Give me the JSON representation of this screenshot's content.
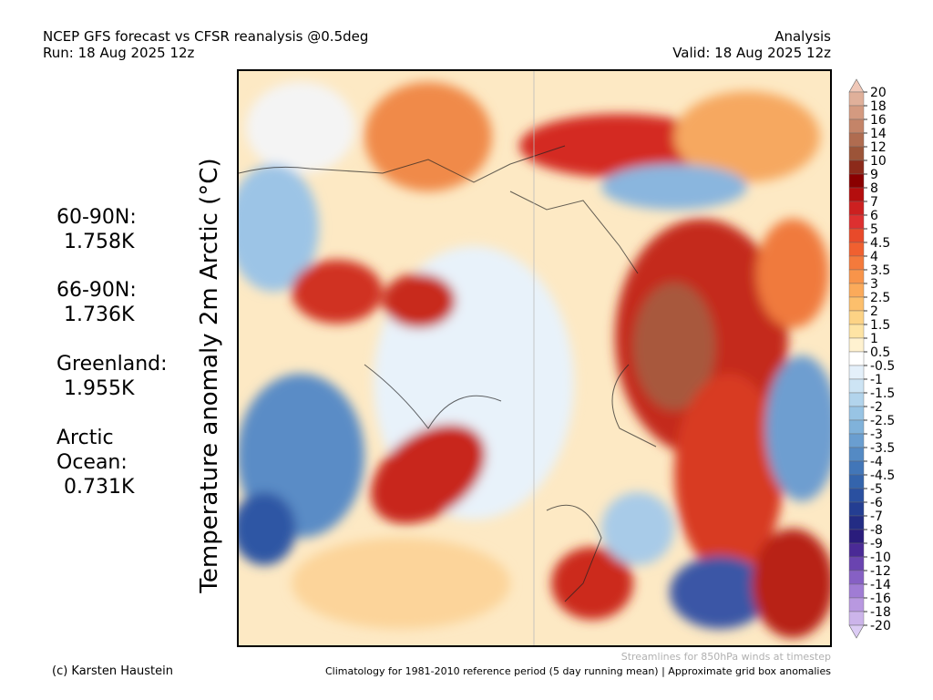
{
  "header": {
    "title": "NCEP GFS forecast vs CFSR reanalysis @0.5deg",
    "run": "Run: 18 Aug 2025 12z",
    "mode": "Analysis",
    "valid": "Valid: 18 Aug 2025 12z"
  },
  "y_label": "Temperature anomaly 2m Arctic (°C)",
  "regions": [
    {
      "name": "60-90N:",
      "value": "1.758K"
    },
    {
      "name": "66-90N:",
      "value": "1.736K"
    },
    {
      "name": "Greenland:",
      "value": "1.955K"
    },
    {
      "name": "Arctic Ocean:",
      "value": "0.731K"
    }
  ],
  "colorbar": {
    "levels": [
      20,
      18,
      16,
      14,
      12,
      10,
      9,
      8,
      7,
      6,
      5,
      4.5,
      4,
      3.5,
      3,
      2.5,
      2,
      1.5,
      1,
      0.5,
      -0.5,
      -1,
      -1.5,
      -2,
      -2.5,
      -3,
      -3.5,
      -4,
      -4.5,
      -5,
      -6,
      -7,
      -8,
      -9,
      -10,
      -12,
      -14,
      -16,
      -18,
      -20
    ],
    "colors": [
      "#f0c8b8",
      "#e0b09a",
      "#d49a80",
      "#c48468",
      "#b06c50",
      "#9c5438",
      "#8c2a1a",
      "#8a0000",
      "#b40e0e",
      "#cc2020",
      "#dd3030",
      "#e84a2a",
      "#f06030",
      "#f47a3c",
      "#f8944a",
      "#fbaa5a",
      "#fcbf6c",
      "#fdd385",
      "#fee4a4",
      "#fff2d0",
      "#ffffff",
      "#e4f0fa",
      "#cde4f4",
      "#b2d4ec",
      "#98c4e4",
      "#80b2da",
      "#6a9ed0",
      "#548ac4",
      "#4276b8",
      "#3464ac",
      "#2a50a0",
      "#243e92",
      "#232c84",
      "#2a1c7c",
      "#4a2a96",
      "#6a44b0",
      "#8660c4",
      "#a07cd4",
      "#b898e0",
      "#ccb4ea",
      "#dcccf4"
    ]
  },
  "footer": {
    "credit": "(c) Karsten Haustein",
    "streamlines": "Streamlines for 850hPa winds at timestep",
    "climatology": "Climatology for 1981-2010 reference period (5 day running mean) | Approximate grid box anomalies"
  }
}
